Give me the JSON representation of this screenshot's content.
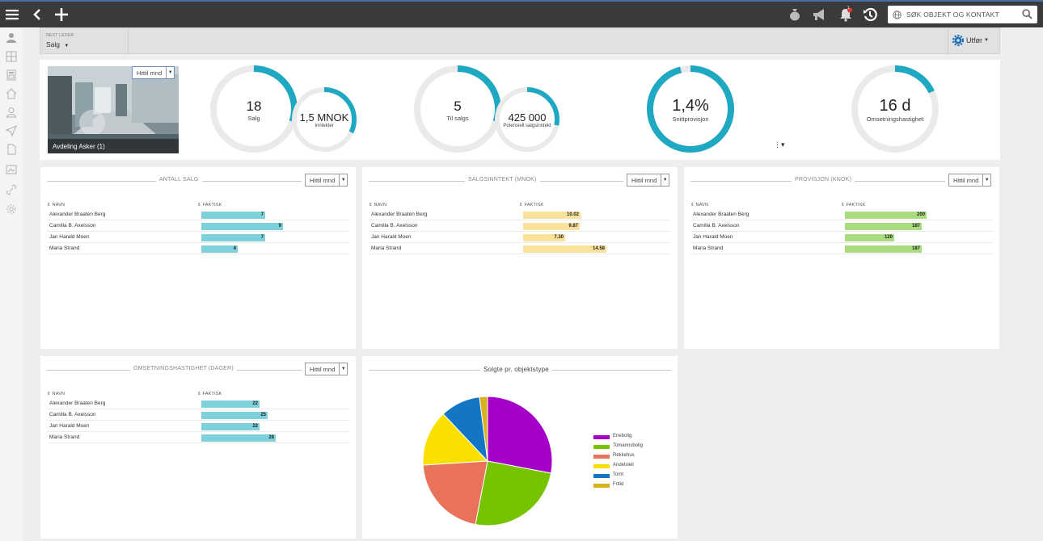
{
  "topbar": {
    "search_placeholder": "SØK OBJEKT OG KONTAKT",
    "icons": [
      "menu-icon",
      "back-icon",
      "add-icon",
      "money-bag-icon",
      "megaphone-icon",
      "bell-icon",
      "history-icon",
      "globe-icon",
      "search-icon"
    ],
    "notification_badge": "1"
  },
  "sidebar": {
    "icons": [
      "user-group-icon",
      "grid-icon",
      "calculator-icon",
      "home-icon",
      "person-icon",
      "send-icon",
      "document-icon",
      "image-icon",
      "link-icon",
      "gear-icon"
    ]
  },
  "subheader": {
    "label": "NEXT LEDER",
    "value": "Salg",
    "action_label": "Utfør"
  },
  "kpi": {
    "photo_caption": "Avdeling Asker (1)",
    "period_label": "Hittil mnd",
    "cards": [
      {
        "value": "18",
        "label": "Salg",
        "progress": 0.3
      },
      {
        "value": "1,5 MNOK",
        "label": "Inntekter",
        "progress": 0.32
      },
      {
        "value": "5",
        "label": "Til salgs",
        "progress": 0.3
      },
      {
        "value": "425 000",
        "label": "Potensiell salgsinntekt",
        "progress": 0.28
      },
      {
        "value": "1,4%",
        "label": "Snittprovisjon",
        "progress": 0.96
      },
      {
        "value": "16 d",
        "label": "Omsetningshastighet",
        "progress": 0.18
      }
    ]
  },
  "panels": {
    "col_name": "⇕ NAVN",
    "col_actual": "⇕ FAKTISK",
    "period_label": "Hittil mnd",
    "antall_salg": {
      "title": "ANTALL SALG",
      "color": "#7dd1da",
      "rows": [
        {
          "name": "Alexander Braaten Berg",
          "value": "7",
          "num": 7
        },
        {
          "name": "Camilla B. Axelsson",
          "value": "9",
          "num": 9
        },
        {
          "name": "Jan Harald Moen",
          "value": "7",
          "num": 7
        },
        {
          "name": "Maria Strand",
          "value": "4",
          "num": 4
        }
      ]
    },
    "salgsinntekt": {
      "title": "SALGSINNTEKT (MNOK)",
      "color": "#fbe29b",
      "rows": [
        {
          "name": "Alexander Braaten Berg",
          "value": "10.02",
          "num": 10.02
        },
        {
          "name": "Camilla B. Axelsson",
          "value": "9.87",
          "num": 9.87
        },
        {
          "name": "Jan Harald Moen",
          "value": "7.30",
          "num": 7.3
        },
        {
          "name": "Maria Strand",
          "value": "14.58",
          "num": 14.58
        }
      ]
    },
    "provisjon": {
      "title": "PROVISJON (KNOK)",
      "color": "#a9dc7f",
      "rows": [
        {
          "name": "Alexander Braaten Berg",
          "value": "200",
          "num": 200
        },
        {
          "name": "Camilla B. Axelsson",
          "value": "187",
          "num": 187
        },
        {
          "name": "Jan Harald Moen",
          "value": "120",
          "num": 120
        },
        {
          "name": "Maria Strand",
          "value": "187",
          "num": 187
        }
      ]
    },
    "omsetning": {
      "title": "OMSETNINGSHASTIGHET (DAGER)",
      "color": "#7dd1da",
      "rows": [
        {
          "name": "Alexander Braaten Berg",
          "value": "22",
          "num": 22
        },
        {
          "name": "Camilla B. Axelsson",
          "value": "25",
          "num": 25
        },
        {
          "name": "Jan Harald Moen",
          "value": "22",
          "num": 22
        },
        {
          "name": "Maria Strand",
          "value": "28",
          "num": 28
        }
      ]
    },
    "pie": {
      "title": "Solgte pr. objektstype"
    }
  },
  "chart_data": {
    "type": "pie",
    "title": "Solgte pr. objektstype",
    "series": [
      {
        "name": "Enebolig",
        "value": 28,
        "color": "#a400c8"
      },
      {
        "name": "Tomannsbolig",
        "value": 25,
        "color": "#76c400"
      },
      {
        "name": "Rekkehus",
        "value": 21,
        "color": "#e8735a"
      },
      {
        "name": "Andelsleil",
        "value": 14,
        "color": "#f9e000"
      },
      {
        "name": "Tomt",
        "value": 10,
        "color": "#1276c4"
      },
      {
        "name": "Fritid",
        "value": 2,
        "color": "#d9b11d"
      }
    ],
    "legend": "right"
  }
}
